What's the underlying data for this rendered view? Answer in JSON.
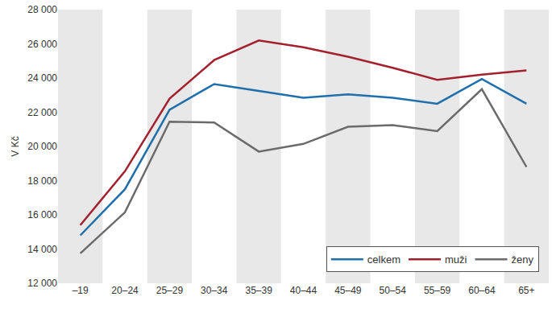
{
  "chart_data": {
    "type": "line",
    "y_label": "V Kč",
    "categories": [
      "–19",
      "20–24",
      "25–29",
      "30–34",
      "35–39",
      "40–44",
      "45–49",
      "50–54",
      "55–59",
      "60–64",
      "65+"
    ],
    "series": [
      {
        "name": "celkem",
        "color": "#1f6fad",
        "values": [
          14800,
          17500,
          22150,
          23650,
          23250,
          22850,
          23050,
          22850,
          22500,
          23950,
          22500
        ]
      },
      {
        "name": "muži",
        "color": "#a3202e",
        "values": [
          15400,
          18550,
          22800,
          25050,
          26200,
          25800,
          25250,
          24600,
          23900,
          24200,
          24450
        ]
      },
      {
        "name": "ženy",
        "color": "#6b6b6b",
        "values": [
          13750,
          16150,
          21450,
          21400,
          19700,
          20150,
          21150,
          21250,
          20900,
          23350,
          18800
        ]
      }
    ],
    "ylim": [
      12000,
      28000
    ],
    "yticks": [
      {
        "value": 12000,
        "label": "12 000"
      },
      {
        "value": 14000,
        "label": "14 000"
      },
      {
        "value": 16000,
        "label": "16 000"
      },
      {
        "value": 18000,
        "label": "18 000"
      },
      {
        "value": 20000,
        "label": "20 000"
      },
      {
        "value": 22000,
        "label": "22 000"
      },
      {
        "value": 24000,
        "label": "24 000"
      },
      {
        "value": 26000,
        "label": "26 000"
      },
      {
        "value": 28000,
        "label": "28 000"
      }
    ],
    "grid": false,
    "legend": "lower right"
  }
}
